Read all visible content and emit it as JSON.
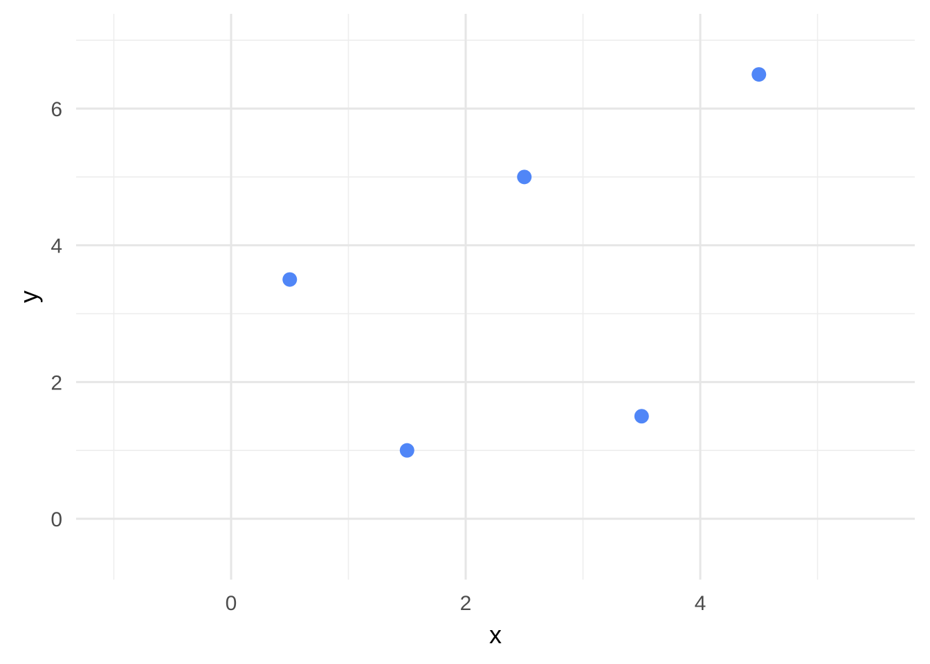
{
  "chart_data": {
    "type": "scatter",
    "title": "",
    "xlabel": "x",
    "ylabel": "y",
    "xlim": [
      -1,
      5.5
    ],
    "ylim": [
      -0.5,
      7
    ],
    "xticks": [
      0,
      2,
      4
    ],
    "yticks": [
      0,
      2,
      4,
      6
    ],
    "xticks_minor": [
      -1,
      1,
      3,
      5
    ],
    "yticks_minor": [
      1,
      3,
      5,
      7
    ],
    "grid": true,
    "point_color": "#5086f7",
    "points": [
      {
        "x": 0.5,
        "y": 3.5
      },
      {
        "x": 1.5,
        "y": 1.0
      },
      {
        "x": 2.5,
        "y": 5.0
      },
      {
        "x": 3.5,
        "y": 1.5
      },
      {
        "x": 4.5,
        "y": 6.5
      }
    ]
  }
}
